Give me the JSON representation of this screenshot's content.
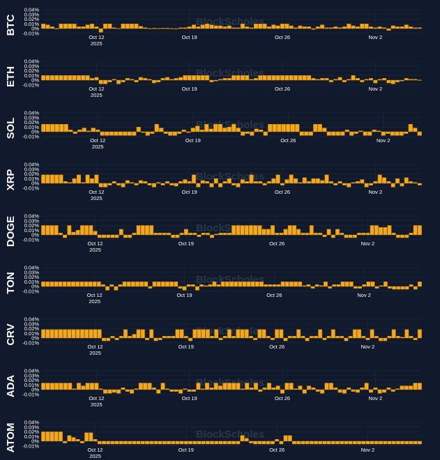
{
  "colors": {
    "background": "#111a2c",
    "bar": "#f4a81a",
    "bar_edge": "#c8860c",
    "text": "#ffffff",
    "grid": "#1f2b40",
    "watermark": "#2a3649"
  },
  "watermark": "BlockScholes",
  "chart_data": {
    "type": "bar",
    "title": "",
    "xlabel": "",
    "ylabel": "",
    "ylim": [
      -0.01,
      0.04
    ],
    "y_ticks": [
      "0.04%",
      "0.03%",
      "0.02%",
      "0.01%",
      "0%",
      "-0.01%"
    ],
    "x_ticks": [
      {
        "label": "Oct 12",
        "sub": "2025"
      },
      {
        "label": "Oct 19",
        "sub": ""
      },
      {
        "label": "Oct 26",
        "sub": ""
      },
      {
        "label": "Nov 2",
        "sub": ""
      }
    ],
    "x_tick_index": [
      12,
      33,
      54,
      75
    ],
    "series": [
      {
        "name": "BTC",
        "values": [
          0.01,
          0.008,
          0.004,
          0.0003,
          0.01,
          0.01,
          0.01,
          0.01,
          0.004,
          0.004,
          0.008,
          0.01,
          0.004,
          -0.008,
          0.01,
          0.01,
          0.002,
          0.0005,
          0.01,
          0.01,
          0.01,
          0.01,
          0.005,
          0.002,
          0.0005,
          0.001,
          0.0005,
          0.001,
          0.001,
          0.0005,
          -0.001,
          0.002,
          0.002,
          0.004,
          0.008,
          0.004,
          0.008,
          0.01,
          0.008,
          0.006,
          0.006,
          0.004,
          0.006,
          0.002,
          0.002,
          0.01,
          0.004,
          0.002,
          0.01,
          0.01,
          0.01,
          0.004,
          0.008,
          0.006,
          0.01,
          0.01,
          0.006,
          0.002,
          0.006,
          0.004,
          0.004,
          -0.002,
          0.004,
          0.008,
          0.002,
          0.002,
          0.004,
          0.002,
          0.004,
          0.01,
          0.006,
          0.004,
          0.01,
          0.01,
          0.004,
          0.002,
          0.004,
          0.002,
          -0.004,
          0.006,
          0.004,
          0.004,
          0.008,
          0.004,
          0.002,
          0.002
        ]
      },
      {
        "name": "ETH",
        "values": [
          0.01,
          0.01,
          0.01,
          0.01,
          0.01,
          0.01,
          0.01,
          0.01,
          0.01,
          0.01,
          0.01,
          0.004,
          0.006,
          -0.008,
          -0.008,
          -0.004,
          0.002,
          -0.008,
          -0.004,
          0.004,
          0.002,
          -0.004,
          0.006,
          0.004,
          0.002,
          -0.006,
          -0.004,
          0.004,
          0.006,
          0.002,
          0.004,
          0.006,
          0.01,
          0.01,
          0.01,
          0.01,
          0.01,
          0.01,
          -0.004,
          -0.002,
          0.002,
          0.004,
          0.004,
          0.01,
          0.01,
          0.01,
          0.01,
          0.002,
          0.004,
          0.01,
          0.01,
          0.01,
          0.01,
          0.01,
          0.01,
          0.01,
          0.01,
          0.01,
          0.01,
          0.01,
          0.01,
          0.004,
          0.002,
          0.004,
          0.004,
          -0.004,
          0.002,
          0.006,
          -0.004,
          0.002,
          0.01,
          0.004,
          -0.004,
          0.002,
          0.004,
          -0.006,
          0.002,
          0.004,
          -0.006,
          -0.008,
          -0.004,
          -0.002,
          0.004,
          0.002,
          0.002,
          0.0005
        ]
      },
      {
        "name": "SOL",
        "values": [
          0.016,
          0.016,
          0.016,
          0.016,
          0.016,
          0.016,
          0.004,
          -0.004,
          0.004,
          0.008,
          0.002,
          0.008,
          0.004,
          -0.008,
          -0.008,
          -0.008,
          -0.008,
          -0.008,
          -0.008,
          -0.008,
          -0.008,
          0.01,
          -0.002,
          -0.008,
          -0.004,
          0.016,
          0.008,
          -0.004,
          -0.008,
          -0.008,
          -0.004,
          0.004,
          -0.002,
          0.008,
          0.012,
          0.004,
          0.016,
          0.006,
          0.016,
          0.016,
          0.008,
          0.01,
          0.016,
          0.008,
          -0.008,
          -0.004,
          -0.008,
          0.006,
          0.004,
          -0.008,
          0.016,
          0.016,
          0.016,
          0.016,
          0.016,
          0.016,
          0.016,
          -0.008,
          -0.008,
          -0.008,
          0.016,
          0.016,
          0.008,
          -0.008,
          -0.008,
          -0.008,
          -0.008,
          0.004,
          -0.008,
          -0.004,
          0.002,
          -0.008,
          -0.008,
          0.004,
          0.002,
          -0.008,
          -0.004,
          -0.008,
          -0.008,
          -0.008,
          -0.004,
          0.016,
          0.008,
          -0.008
        ]
      },
      {
        "name": "XRP",
        "values": [
          0.018,
          0.018,
          0.018,
          0.018,
          0.018,
          0.004,
          0.002,
          0.01,
          0.018,
          0.002,
          0.018,
          0.01,
          0.018,
          -0.008,
          -0.008,
          -0.004,
          0.004,
          -0.004,
          -0.008,
          0.006,
          0.002,
          -0.004,
          0.006,
          0.004,
          -0.004,
          -0.008,
          0.002,
          -0.004,
          0.004,
          -0.004,
          -0.006,
          0.004,
          0.008,
          0.004,
          0.018,
          -0.008,
          0.006,
          0.004,
          -0.008,
          0.01,
          -0.008,
          0.004,
          0.01,
          -0.004,
          -0.008,
          0.008,
          0.004,
          0.018,
          0.004,
          0.004,
          -0.004,
          0.004,
          0.01,
          0.018,
          -0.004,
          0.008,
          0.018,
          0.01,
          0.002,
          0.012,
          0.004,
          0.01,
          0.01,
          0.006,
          0.018,
          0.004,
          -0.004,
          0.004,
          -0.004,
          -0.008,
          0.002,
          0.004,
          0.008,
          -0.008,
          -0.004,
          0.004,
          0.018,
          0.012,
          0.004,
          -0.008,
          0.01,
          -0.006,
          0.012,
          0.004,
          0.002,
          -0.004
        ]
      },
      {
        "name": "DOGE",
        "values": [
          0.02,
          0.02,
          0.02,
          0.02,
          0.004,
          -0.006,
          0.02,
          0.006,
          0.01,
          0.02,
          0.02,
          0.02,
          0.008,
          -0.006,
          -0.006,
          -0.006,
          -0.006,
          -0.006,
          0.012,
          -0.006,
          -0.006,
          0.004,
          0.02,
          0.02,
          0.02,
          0.02,
          0.004,
          0.004,
          0.004,
          0.004,
          -0.006,
          -0.006,
          0.004,
          0.012,
          0.004,
          0.004,
          -0.004,
          0.004,
          0.004,
          -0.006,
          0.002,
          0.004,
          0.004,
          0.004,
          0.02,
          0.02,
          0.02,
          0.02,
          0.02,
          0.02,
          0.02,
          0.012,
          0.012,
          0.02,
          0.004,
          0.004,
          0.012,
          0.02,
          0.02,
          0.012,
          0.004,
          0.004,
          0.02,
          0.004,
          0.004,
          -0.004,
          0.012,
          -0.006,
          0.012,
          0.004,
          -0.006,
          -0.006,
          -0.006,
          0.004,
          0.004,
          0.004,
          0.02,
          0.02,
          0.016,
          0.016,
          0.02,
          0.004,
          -0.006,
          -0.006,
          -0.006,
          0.004,
          0.02,
          0.02
        ]
      },
      {
        "name": "TON",
        "values": [
          0.01,
          0.01,
          0.01,
          0.01,
          0.01,
          0.01,
          0.01,
          0.01,
          0.01,
          0.01,
          0.01,
          0.01,
          0.01,
          0.01,
          0.004,
          -0.008,
          0.004,
          -0.008,
          0.004,
          0.01,
          0.01,
          0.01,
          0.01,
          0.01,
          0.01,
          -0.004,
          0.01,
          0.01,
          0.01,
          0.01,
          0.01,
          0.01,
          -0.004,
          -0.008,
          0.004,
          0.004,
          -0.008,
          0.004,
          0.002,
          0.004,
          0.01,
          0.004,
          0.01,
          0.01,
          0.01,
          0.01,
          0.01,
          0.01,
          0.01,
          0.01,
          0.01,
          0.01,
          0.004,
          0.004,
          0.004,
          0.004,
          0.01,
          0.01,
          0.01,
          0.01,
          0.01,
          0.002,
          0.004,
          -0.004,
          0.004,
          0.002,
          0.01,
          -0.004,
          0.004,
          0.004,
          0.01,
          0.01,
          0.01,
          -0.004,
          -0.004,
          0.004,
          0.01,
          0.01,
          -0.004,
          0.002,
          0.01,
          -0.004,
          -0.006,
          -0.006,
          -0.006,
          -0.006,
          0.004,
          -0.006,
          0.01
        ]
      },
      {
        "name": "CRV",
        "values": [
          0.018,
          0.018,
          0.018,
          0.018,
          0.018,
          0.018,
          0.018,
          0.018,
          0.018,
          0.018,
          0.018,
          0.018,
          0.018,
          0.018,
          -0.006,
          -0.006,
          0.004,
          -0.004,
          0.004,
          0.018,
          0.004,
          0.008,
          0.018,
          0.018,
          -0.004,
          0.018,
          -0.006,
          -0.004,
          0.004,
          0.004,
          0.004,
          0.018,
          0.018,
          0.004,
          -0.006,
          0.018,
          0.018,
          0.018,
          0.018,
          0.004,
          0.018,
          -0.004,
          0.004,
          0.018,
          0.004,
          0.018,
          0.018,
          0.018,
          0.004,
          -0.004,
          0.018,
          0.018,
          0.004,
          -0.004,
          0.018,
          0.018,
          -0.006,
          0.004,
          0.004,
          0.018,
          0.004,
          -0.006,
          0.004,
          0.004,
          0.018,
          -0.004,
          0.004,
          0.018,
          0.004,
          0.004,
          -0.006,
          0.004,
          0.018,
          0.018,
          0.004,
          -0.004,
          0.018,
          0.004,
          -0.006,
          -0.006,
          0.004,
          0.018,
          0.004,
          0.002,
          0.018,
          0.004,
          -0.004,
          0.018
        ]
      },
      {
        "name": "ADA",
        "values": [
          0.014,
          0.014,
          0.014,
          0.014,
          0.014,
          0.014,
          0.014,
          0.002,
          0.014,
          0.008,
          0.014,
          0.014,
          0.014,
          0.002,
          -0.008,
          -0.008,
          -0.006,
          -0.008,
          0.004,
          -0.004,
          -0.008,
          0.002,
          0.014,
          0.014,
          0.014,
          0.004,
          -0.008,
          0.014,
          0.002,
          -0.004,
          -0.004,
          -0.008,
          0.002,
          -0.004,
          -0.004,
          0.014,
          0.002,
          0.014,
          0.004,
          0.014,
          0.008,
          0.014,
          0.014,
          0.014,
          0.014,
          0.002,
          0.014,
          0.004,
          0.014,
          -0.004,
          0.004,
          0.014,
          0.004,
          0.008,
          -0.008,
          0.014,
          0.014,
          0.002,
          0.008,
          -0.008,
          0.008,
          0.004,
          -0.004,
          -0.008,
          0.014,
          0.014,
          0.004,
          -0.006,
          -0.008,
          0.004,
          -0.004,
          -0.006,
          0.004,
          0.014,
          -0.006,
          0.004,
          -0.008,
          -0.006,
          0.004,
          -0.004,
          0.002,
          0.008,
          0.008,
          0.008,
          0.014,
          0.014
        ]
      },
      {
        "name": "ATOM",
        "values": [
          0.02,
          0.02,
          0.02,
          0.02,
          0.02,
          -0.004,
          0.012,
          0.008,
          0.004,
          -0.004,
          0.018,
          0.018,
          0.004,
          -0.006,
          -0.006,
          -0.006,
          -0.006,
          -0.006,
          -0.006,
          -0.006,
          -0.006,
          -0.006,
          -0.006,
          -0.006,
          -0.006,
          -0.006,
          -0.006,
          -0.006,
          -0.006,
          -0.006,
          -0.006,
          -0.006,
          -0.006,
          -0.006,
          -0.006,
          -0.006,
          -0.006,
          -0.006,
          -0.006,
          -0.006,
          -0.006,
          -0.006,
          -0.006,
          -0.006,
          -0.006,
          -0.006,
          0.012,
          0.006,
          -0.004,
          -0.006,
          -0.006,
          -0.006,
          -0.006,
          -0.006,
          0.004,
          -0.006,
          0.012,
          0.012,
          -0.006,
          -0.006,
          -0.006,
          -0.006,
          -0.006,
          -0.006,
          -0.006,
          -0.006,
          -0.006,
          -0.006,
          -0.006,
          -0.006,
          -0.006,
          -0.006,
          -0.006,
          -0.006,
          -0.006,
          -0.006,
          -0.006,
          -0.006,
          -0.006,
          -0.006,
          -0.006,
          -0.006,
          -0.006,
          -0.006,
          -0.006,
          -0.006,
          -0.006,
          -0.006
        ]
      }
    ]
  }
}
